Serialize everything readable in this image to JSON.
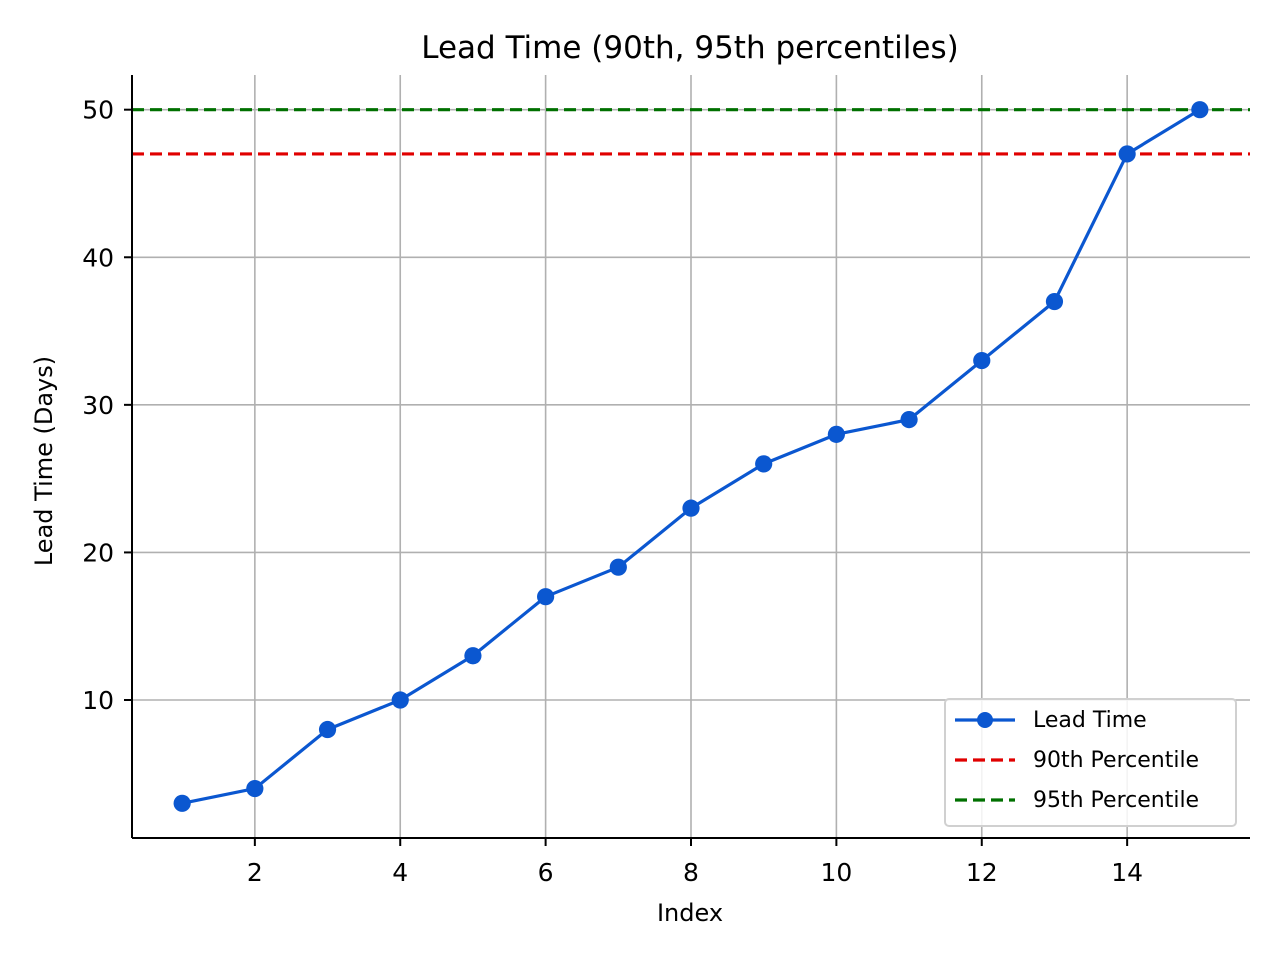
{
  "chart_data": {
    "type": "line",
    "title": "Lead Time (90th, 95th percentiles)",
    "xlabel": "Index",
    "ylabel": "Lead Time (Days)",
    "x": [
      1,
      2,
      3,
      4,
      5,
      6,
      7,
      8,
      9,
      10,
      11,
      12,
      13,
      14,
      15
    ],
    "series": [
      {
        "name": "Lead Time",
        "color": "#0b57d0",
        "style": "solid-with-markers",
        "values": [
          3,
          4,
          8,
          10,
          13,
          17,
          19,
          23,
          26,
          28,
          29,
          33,
          37,
          47,
          50
        ]
      }
    ],
    "reference_lines": [
      {
        "name": "90th Percentile",
        "value": 47,
        "color": "#e00000",
        "style": "dashed"
      },
      {
        "name": "95th Percentile",
        "value": 50,
        "color": "#007000",
        "style": "dashed"
      }
    ],
    "x_ticks": [
      2,
      4,
      6,
      8,
      10,
      12,
      14
    ],
    "y_ticks": [
      10,
      20,
      30,
      40,
      50
    ],
    "xlim": [
      0.31,
      15.69
    ],
    "ylim": [
      0.65,
      52.35
    ],
    "grid": true,
    "legend_position": "lower-right"
  },
  "legend": {
    "items": [
      {
        "label": "Lead Time"
      },
      {
        "label": "90th Percentile"
      },
      {
        "label": "95th Percentile"
      }
    ]
  }
}
